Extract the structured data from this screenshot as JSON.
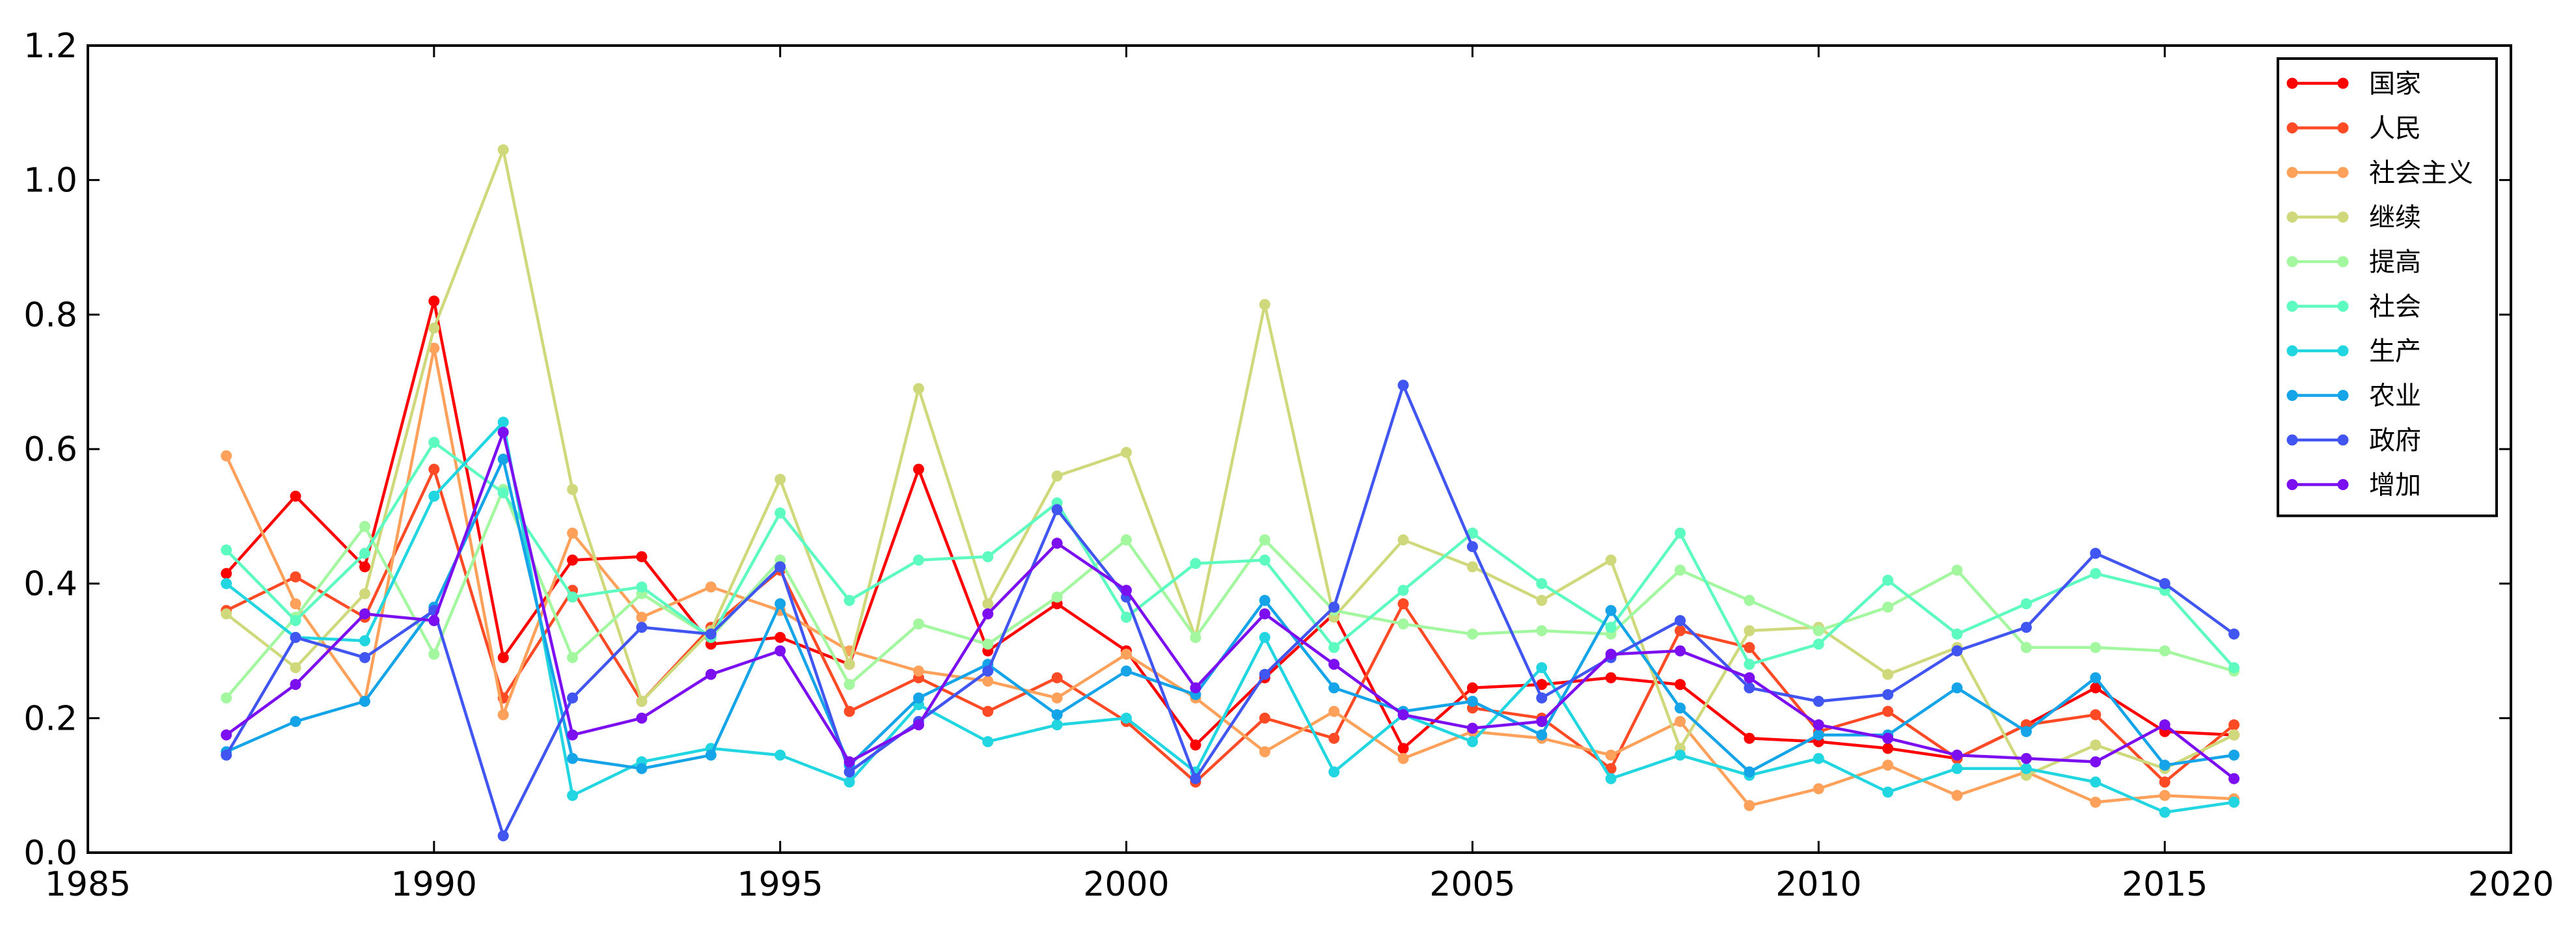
{
  "chart_data": {
    "type": "line",
    "title": "",
    "xlabel": "",
    "ylabel": "",
    "xlim": [
      1985,
      2020
    ],
    "ylim": [
      0.0,
      1.2
    ],
    "xticks": [
      1985,
      1990,
      1995,
      2000,
      2005,
      2010,
      2015,
      2020
    ],
    "xtick_labels": [
      "1985",
      "1990",
      "1995",
      "2000",
      "2005",
      "2010",
      "2015",
      "2020"
    ],
    "yticks": [
      0.0,
      0.2,
      0.4,
      0.6,
      0.8,
      1.0,
      1.2
    ],
    "ytick_labels": [
      "0.0",
      "0.2",
      "0.4",
      "0.6",
      "0.8",
      "1.0",
      "1.2"
    ],
    "grid": false,
    "legend_position": "top-right",
    "x": [
      1987,
      1988,
      1989,
      1990,
      1991,
      1992,
      1993,
      1994,
      1995,
      1996,
      1997,
      1998,
      1999,
      2000,
      2001,
      2002,
      2003,
      2004,
      2005,
      2006,
      2007,
      2008,
      2009,
      2010,
      2011,
      2012,
      2013,
      2014,
      2015,
      2016
    ],
    "series": [
      {
        "name": "国家",
        "color": "#ff0000",
        "values": [
          0.415,
          0.53,
          0.425,
          0.82,
          0.29,
          0.435,
          0.44,
          0.31,
          0.32,
          0.28,
          0.57,
          0.3,
          0.37,
          0.3,
          0.16,
          0.26,
          0.355,
          0.155,
          0.245,
          0.25,
          0.26,
          0.25,
          0.17,
          0.165,
          0.155,
          0.14,
          0.19,
          0.245,
          0.18,
          0.175
        ]
      },
      {
        "name": "人民",
        "color": "#ff4a26",
        "values": [
          0.36,
          0.41,
          0.35,
          0.57,
          0.23,
          0.39,
          0.225,
          0.335,
          0.42,
          0.21,
          0.26,
          0.21,
          0.26,
          0.195,
          0.105,
          0.2,
          0.17,
          0.37,
          0.215,
          0.2,
          0.125,
          0.33,
          0.305,
          0.18,
          0.21,
          0.14,
          0.19,
          0.205,
          0.105,
          0.19
        ]
      },
      {
        "name": "社会主义",
        "color": "#ffa15a",
        "values": [
          0.59,
          0.37,
          0.225,
          0.75,
          0.205,
          0.475,
          0.35,
          0.395,
          0.36,
          0.3,
          0.27,
          0.255,
          0.23,
          0.295,
          0.23,
          0.15,
          0.21,
          0.14,
          0.18,
          0.17,
          0.145,
          0.195,
          0.07,
          0.095,
          0.13,
          0.085,
          0.12,
          0.075,
          0.085,
          0.08
        ]
      },
      {
        "name": "继续",
        "color": "#cfd97b",
        "values": [
          0.355,
          0.275,
          0.385,
          0.78,
          1.045,
          0.54,
          0.225,
          0.33,
          0.555,
          0.28,
          0.69,
          0.37,
          0.56,
          0.595,
          0.32,
          0.815,
          0.35,
          0.465,
          0.425,
          0.375,
          0.435,
          0.155,
          0.33,
          0.335,
          0.265,
          0.305,
          0.115,
          0.16,
          0.125,
          0.175
        ]
      },
      {
        "name": "提高",
        "color": "#a2f79f",
        "values": [
          0.23,
          0.35,
          0.485,
          0.295,
          0.54,
          0.29,
          0.385,
          0.32,
          0.435,
          0.25,
          0.34,
          0.31,
          0.38,
          0.465,
          0.32,
          0.465,
          0.36,
          0.34,
          0.325,
          0.33,
          0.325,
          0.42,
          0.375,
          0.33,
          0.365,
          0.42,
          0.305,
          0.305,
          0.3,
          0.27
        ]
      },
      {
        "name": "社会",
        "color": "#5efbc0",
        "values": [
          0.45,
          0.345,
          0.445,
          0.61,
          0.535,
          0.38,
          0.395,
          0.32,
          0.505,
          0.375,
          0.435,
          0.44,
          0.52,
          0.35,
          0.43,
          0.435,
          0.305,
          0.39,
          0.475,
          0.4,
          0.335,
          0.475,
          0.28,
          0.31,
          0.405,
          0.325,
          0.37,
          0.415,
          0.39,
          0.275
        ]
      },
      {
        "name": "生产",
        "color": "#22d6e1",
        "values": [
          0.4,
          0.32,
          0.315,
          0.53,
          0.64,
          0.085,
          0.135,
          0.155,
          0.145,
          0.105,
          0.22,
          0.165,
          0.19,
          0.2,
          0.12,
          0.32,
          0.12,
          0.205,
          0.165,
          0.275,
          0.11,
          0.145,
          0.115,
          0.14,
          0.09,
          0.125,
          0.125,
          0.105,
          0.06,
          0.075
        ]
      },
      {
        "name": "农业",
        "color": "#16a4e8",
        "values": [
          0.15,
          0.195,
          0.225,
          0.365,
          0.585,
          0.14,
          0.125,
          0.145,
          0.37,
          0.13,
          0.23,
          0.28,
          0.205,
          0.27,
          0.235,
          0.375,
          0.245,
          0.21,
          0.225,
          0.175,
          0.36,
          0.215,
          0.12,
          0.175,
          0.175,
          0.245,
          0.18,
          0.26,
          0.13,
          0.145
        ]
      },
      {
        "name": "政府",
        "color": "#4155f0",
        "values": [
          0.145,
          0.32,
          0.29,
          0.36,
          0.025,
          0.23,
          0.335,
          0.325,
          0.425,
          0.12,
          0.195,
          0.27,
          0.51,
          0.38,
          0.11,
          0.265,
          0.365,
          0.695,
          0.455,
          0.23,
          0.29,
          0.345,
          0.245,
          0.225,
          0.235,
          0.3,
          0.335,
          0.445,
          0.4,
          0.325
        ]
      },
      {
        "name": "增加",
        "color": "#7c0ff0",
        "values": [
          0.175,
          0.25,
          0.355,
          0.345,
          0.625,
          0.175,
          0.2,
          0.265,
          0.3,
          0.135,
          0.19,
          0.355,
          0.46,
          0.39,
          0.245,
          0.355,
          0.28,
          0.205,
          0.185,
          0.195,
          0.295,
          0.3,
          0.26,
          0.19,
          0.17,
          0.145,
          0.14,
          0.135,
          0.19,
          0.11
        ]
      }
    ]
  }
}
